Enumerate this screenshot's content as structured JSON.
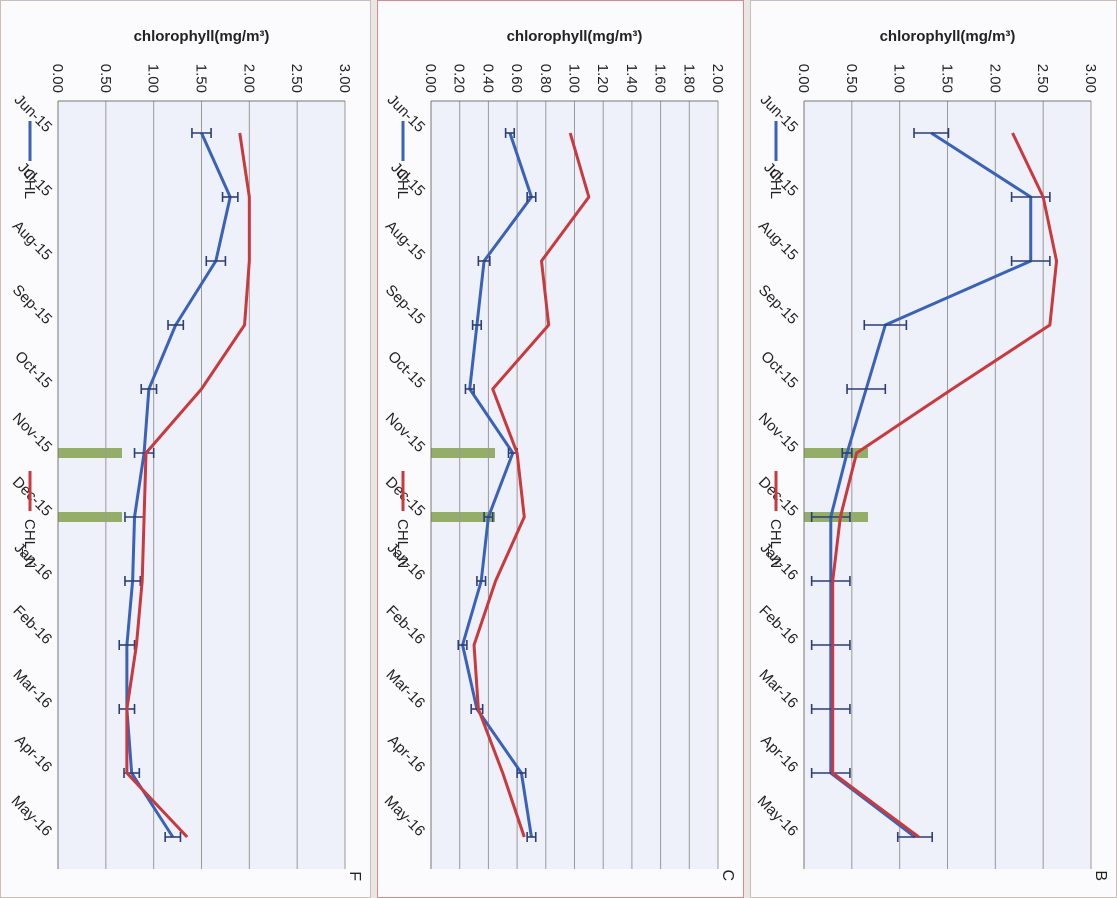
{
  "colors": {
    "chl": "#3a62b8",
    "chl_n": "#c9393d",
    "highlight": "#8aa65a",
    "plot_bg": "#eef0fa"
  },
  "chart_data": [
    {
      "type": "line",
      "title": "B",
      "ylabel": "chlorophyll(mg/m³)",
      "ylim": [
        0,
        3
      ],
      "yticks": [
        "0.00",
        "0.50",
        "1.00",
        "1.50",
        "2.00",
        "2.50",
        "3.00"
      ],
      "yticks_values": [
        0,
        0.5,
        1,
        1.5,
        2,
        2.5,
        3
      ],
      "categories": [
        "Jun-15",
        "Jul-15",
        "Aug-15",
        "Sep-15",
        "Oct-15",
        "Nov-15",
        "Dec-15",
        "Jan-16",
        "Feb-16",
        "Mar-16",
        "Apr-16",
        "May-16"
      ],
      "series": [
        {
          "name": "CHL",
          "values": [
            1.33,
            2.37,
            2.37,
            0.85,
            0.65,
            0.45,
            0.28,
            0.28,
            0.28,
            0.28,
            0.28,
            1.16
          ],
          "error": [
            0.18,
            0.2,
            0.2,
            0.22,
            0.2,
            0.05,
            0.2,
            0.2,
            0.2,
            0.2,
            0.2,
            0.18
          ]
        },
        {
          "name": "CHL_N",
          "values": [
            2.18,
            2.5,
            2.64,
            2.57,
            1.55,
            0.55,
            0.38,
            0.3,
            0.3,
            0.3,
            0.3,
            1.2
          ]
        }
      ],
      "highlight_months": [
        "Nov-15",
        "Dec-15"
      ],
      "grid": true,
      "legend": "top"
    },
    {
      "type": "line",
      "title": "C",
      "ylabel": "chlorophyll(mg/m³)",
      "ylim": [
        0,
        2
      ],
      "yticks": [
        "0.00",
        "0.20",
        "0.40",
        "0.60",
        "0.80",
        "1.00",
        "1.20",
        "1.40",
        "1.60",
        "1.80",
        "2.00"
      ],
      "yticks_values": [
        0,
        0.2,
        0.4,
        0.6,
        0.8,
        1.0,
        1.2,
        1.4,
        1.6,
        1.8,
        2.0
      ],
      "categories": [
        "Jun-15",
        "Jul-15",
        "Aug-15",
        "Sep-15",
        "Oct-15",
        "Nov-15",
        "Dec-15",
        "Jan-16",
        "Feb-16",
        "Mar-16",
        "Apr-16",
        "May-16"
      ],
      "series": [
        {
          "name": "CHL",
          "values": [
            0.55,
            0.7,
            0.37,
            0.32,
            0.27,
            0.57,
            0.4,
            0.35,
            0.22,
            0.32,
            0.63,
            0.7
          ],
          "error": [
            0.03,
            0.03,
            0.04,
            0.03,
            0.03,
            0.03,
            0.03,
            0.03,
            0.03,
            0.04,
            0.03,
            0.03
          ]
        },
        {
          "name": "CHL_N",
          "values": [
            0.97,
            1.1,
            0.77,
            0.82,
            0.43,
            0.6,
            0.65,
            0.45,
            0.3,
            0.33,
            0.5,
            0.65
          ]
        }
      ],
      "highlight_months": [
        "Nov-15",
        "Dec-15"
      ],
      "grid": true,
      "legend": "top"
    },
    {
      "type": "line",
      "title": "F",
      "ylabel": "chlorophyll(mg/m³)",
      "ylim": [
        0,
        3
      ],
      "yticks": [
        "0.00",
        "0.50",
        "1.00",
        "1.50",
        "2.00",
        "2.50",
        "3.00"
      ],
      "yticks_values": [
        0,
        0.5,
        1,
        1.5,
        2,
        2.5,
        3
      ],
      "categories": [
        "Jun-15",
        "Jul-15",
        "Aug-15",
        "Sep-15",
        "Oct-15",
        "Nov-15",
        "Dec-15",
        "Jan-16",
        "Feb-16",
        "Mar-16",
        "Apr-16",
        "May-16"
      ],
      "series": [
        {
          "name": "CHL",
          "values": [
            1.5,
            1.8,
            1.65,
            1.23,
            0.95,
            0.9,
            0.8,
            0.78,
            0.72,
            0.72,
            0.77,
            1.2
          ],
          "error": [
            0.1,
            0.08,
            0.1,
            0.08,
            0.08,
            0.1,
            0.1,
            0.08,
            0.08,
            0.08,
            0.08,
            0.08
          ]
        },
        {
          "name": "CHL_N",
          "values": [
            1.9,
            2.0,
            2.0,
            1.95,
            1.5,
            0.92,
            0.9,
            0.88,
            0.82,
            0.72,
            0.72,
            1.35
          ]
        }
      ],
      "highlight_months": [
        "Nov-15",
        "Dec-15"
      ],
      "grid": true,
      "legend": "top"
    }
  ]
}
